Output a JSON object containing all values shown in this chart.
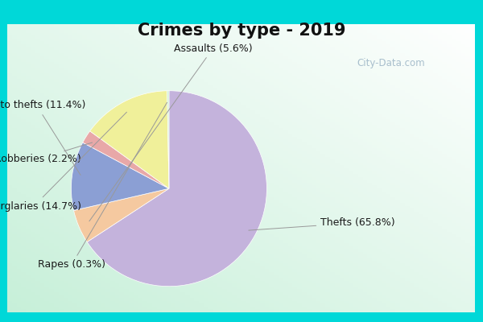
{
  "title": "Crimes by type - 2019",
  "slices": [
    {
      "label": "Thefts",
      "pct": 65.8,
      "color": "#c4b3dc"
    },
    {
      "label": "Assaults",
      "pct": 5.6,
      "color": "#f5c9a0"
    },
    {
      "label": "Auto thefts",
      "pct": 11.4,
      "color": "#8b9fd4"
    },
    {
      "label": "Robberies",
      "pct": 2.2,
      "color": "#e8a8a8"
    },
    {
      "label": "Burglaries",
      "pct": 14.7,
      "color": "#f0f09a"
    },
    {
      "label": "Rapes",
      "pct": 0.3,
      "color": "#d0efd0"
    }
  ],
  "bg_outer": "#00d8d8",
  "title_fontsize": 15,
  "label_fontsize": 9,
  "watermark": "City-Data.com",
  "watermark_color": "#a0b8c8"
}
